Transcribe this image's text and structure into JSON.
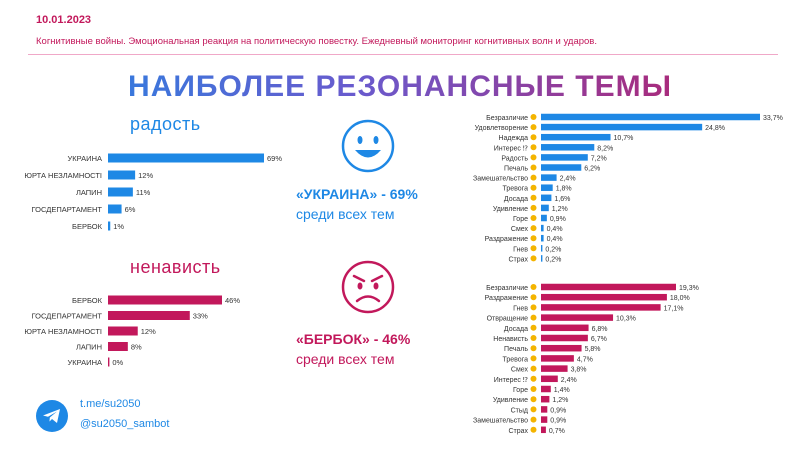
{
  "header": {
    "date": "10.01.2023",
    "subtitle": "Когнитивные войны. Эмоциональная реакция на политическую повестку. Ежедневный мониторинг когнитивных волн и ударов.",
    "title": "НАИБОЛЕЕ РЕЗОНАНСНЫЕ ТЕМЫ"
  },
  "sections": {
    "joy_title": "радость",
    "hate_title": "ненависть"
  },
  "callouts": {
    "joy_topic": "«УКРАИНА» - 69%",
    "joy_sub": "среди всех тем",
    "hate_topic": "«БЕРБОК» - 46%",
    "hate_sub": "среди всех тем"
  },
  "footer": {
    "link1": "t.me/su2050",
    "link2": "@su2050_sambot"
  },
  "colors": {
    "blue": "#1e88e5",
    "magenta": "#c2185b",
    "emoji": "#f4b400"
  },
  "icons": [
    "smile-face-icon",
    "angry-face-icon",
    "telegram-icon"
  ],
  "chart_data": [
    {
      "type": "bar",
      "orientation": "horizontal",
      "title": "радость",
      "categories": [
        "УКРАИНА",
        "ЮРТА НЕЗЛАМНОСТІ",
        "ЛАПИН",
        "ГОСДЕПАРТАМЕНТ",
        "БЕРБОК"
      ],
      "values": [
        69,
        12,
        11,
        6,
        1
      ],
      "labels": [
        "69%",
        "12%",
        "11%",
        "6%",
        "1%"
      ],
      "unit": "%",
      "xlim": [
        0,
        69
      ],
      "color": "#1e88e5"
    },
    {
      "type": "bar",
      "orientation": "horizontal",
      "title": "ненависть",
      "categories": [
        "БЕРБОК",
        "ГОСДЕПАРТАМЕНТ",
        "ЮРТА НЕЗЛАМНОСТІ",
        "ЛАПИН",
        "УКРАИНА"
      ],
      "values": [
        46,
        33,
        12,
        8,
        0
      ],
      "labels": [
        "46%",
        "33%",
        "12%",
        "8%",
        "0%"
      ],
      "unit": "%",
      "xlim": [
        0,
        46
      ],
      "color": "#c2185b"
    },
    {
      "type": "bar",
      "orientation": "horizontal",
      "categories": [
        "Безразличие",
        "Удовлетворение",
        "Надежда",
        "Интерес ⁉",
        "Радость",
        "Печаль",
        "Замешательство",
        "Тревога",
        "Досада",
        "Удивление",
        "Горе",
        "Смех",
        "Раздражение",
        "Гнев",
        "Страх"
      ],
      "values": [
        33.7,
        24.8,
        10.7,
        8.2,
        7.2,
        6.2,
        2.4,
        1.8,
        1.6,
        1.2,
        0.9,
        0.4,
        0.4,
        0.2,
        0.2
      ],
      "labels": [
        "33,7%",
        "24,8%",
        "10,7%",
        "8,2%",
        "7,2%",
        "6,2%",
        "2,4%",
        "1,8%",
        "1,6%",
        "1,2%",
        "0,9%",
        "0,4%",
        "0,4%",
        "0,2%",
        "0,2%"
      ],
      "unit": "%",
      "xlim": [
        0,
        33.7
      ],
      "color": "#1e88e5"
    },
    {
      "type": "bar",
      "orientation": "horizontal",
      "categories": [
        "Безразличие",
        "Раздражение",
        "Гнев",
        "Отвращение",
        "Досада",
        "Ненависть",
        "Печаль",
        "Тревога",
        "Смех",
        "Интерес ⁉",
        "Горе",
        "Удивление",
        "Стыд",
        "Замешательство",
        "Страх"
      ],
      "values": [
        19.3,
        18.0,
        17.1,
        10.3,
        6.8,
        6.7,
        5.8,
        4.7,
        3.8,
        2.4,
        1.4,
        1.2,
        0.9,
        0.9,
        0.7
      ],
      "labels": [
        "19,3%",
        "18,0%",
        "17,1%",
        "10,3%",
        "6,8%",
        "6,7%",
        "5,8%",
        "4,7%",
        "3,8%",
        "2,4%",
        "1,4%",
        "1,2%",
        "0,9%",
        "0,9%",
        "0,7%"
      ],
      "unit": "%",
      "xlim": [
        0,
        19.3
      ],
      "color": "#c2185b"
    }
  ]
}
